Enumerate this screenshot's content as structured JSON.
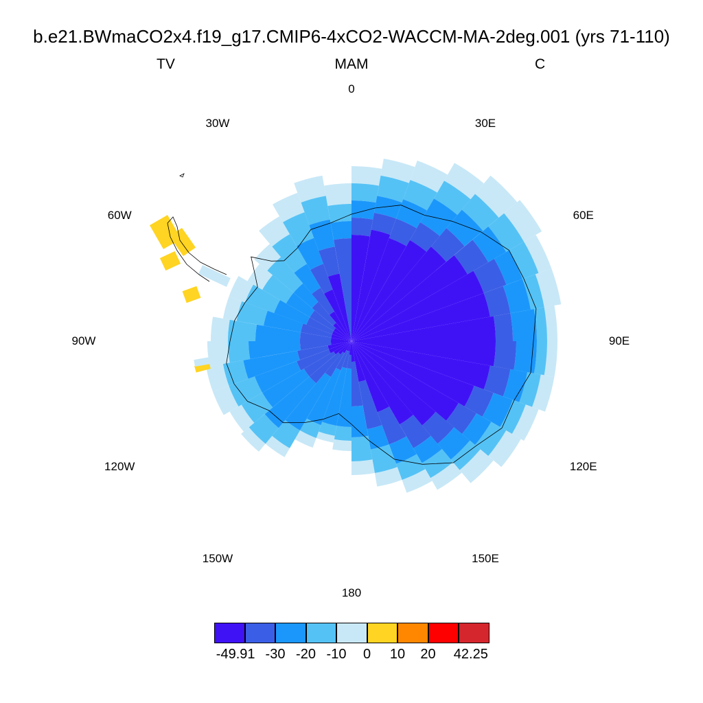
{
  "title": "b.e21.BWmaCO2x4.f19_g17.CMIP6-4xCO2-WACCM-MA-2deg.001 (yrs 71-110)",
  "subtitle_left": "TV",
  "subtitle_center": "MAM",
  "subtitle_right": "C",
  "longitude_labels": [
    "0",
    "30E",
    "60E",
    "90E",
    "120E",
    "150E",
    "180",
    "150W",
    "120W",
    "90W",
    "60W",
    "30W"
  ],
  "colorbar": {
    "colors": [
      "#3f12f6",
      "#3b5ee6",
      "#1b97fb",
      "#55c2f5",
      "#c8e8f7",
      "#ffd422",
      "#ff8700",
      "#ff0000",
      "#d5262d"
    ],
    "labels": [
      "-49.91",
      "-30",
      "-20",
      "-10",
      "0",
      "10",
      "20",
      "42.25"
    ]
  },
  "field": {
    "levels": [
      -49.91,
      -30,
      -20,
      -10,
      0,
      10,
      20,
      42.25
    ],
    "description_values": {
      "east_antarctic_interior": -40,
      "coastal_belt": -25,
      "ross_west_sector": -15,
      "peninsula_tip": 5
    }
  }
}
